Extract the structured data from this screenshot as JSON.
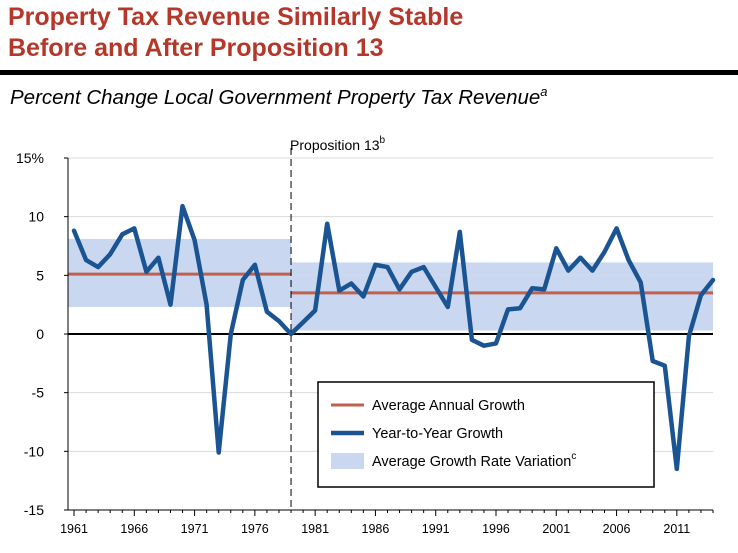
{
  "title_line1": "Property Tax Revenue Similarly Stable",
  "title_line2": "Before and After Proposition 13",
  "subtitle": "Percent Change Local Government Property Tax Revenue",
  "subtitle_sup": "a",
  "colors": {
    "title": "#b5372a",
    "line": "#1a5492",
    "average": "#c0604f",
    "band": "#c9d8f0"
  },
  "chart_data": {
    "type": "line",
    "title": "",
    "xlabel": "",
    "ylabel": "",
    "ylim": [
      -15,
      15
    ],
    "xlim": [
      1960.5,
      2014
    ],
    "y_ticks": [
      15,
      10,
      5,
      0,
      -5,
      -10,
      -15
    ],
    "y_tick_labels": [
      "15%",
      "10",
      "5",
      "0",
      "-5",
      "-10",
      "-15"
    ],
    "x_ticks": [
      1961,
      1966,
      1971,
      1976,
      1981,
      1986,
      1991,
      1996,
      2001,
      2006,
      2011
    ],
    "x_tick_labels": [
      "1961",
      "1966",
      "1971",
      "1976",
      "1981",
      "1986",
      "1991",
      "1996",
      "2001",
      "2006",
      "2011"
    ],
    "grid": "horizontal",
    "annotation": {
      "text": "Proposition 13",
      "sup": "b",
      "x": 1979
    },
    "series": [
      {
        "name": "Year-to-Year Growth",
        "x": [
          1961,
          1962,
          1963,
          1964,
          1965,
          1966,
          1967,
          1968,
          1969,
          1970,
          1971,
          1972,
          1973,
          1974,
          1975,
          1976,
          1977,
          1978,
          1979,
          1980,
          1981,
          1982,
          1983,
          1984,
          1985,
          1986,
          1987,
          1988,
          1989,
          1990,
          1991,
          1992,
          1993,
          1994,
          1995,
          1996,
          1997,
          1998,
          1999,
          2000,
          2001,
          2002,
          2003,
          2004,
          2005,
          2006,
          2007,
          2008,
          2009,
          2010,
          2011,
          2012,
          2013,
          2014
        ],
        "values": [
          8.8,
          6.3,
          5.7,
          6.8,
          8.5,
          9.0,
          5.3,
          6.5,
          2.5,
          10.9,
          8.0,
          2.5,
          -10.1,
          0.0,
          4.6,
          5.9,
          1.9,
          1.1,
          0.0,
          1.0,
          2.0,
          9.4,
          3.7,
          4.3,
          3.2,
          5.9,
          5.7,
          3.8,
          5.3,
          5.7,
          4.0,
          2.3,
          8.7,
          -0.5,
          -1.0,
          -0.8,
          2.1,
          2.2,
          3.9,
          3.8,
          7.3,
          5.4,
          6.5,
          5.4,
          7.0,
          9.0,
          6.3,
          4.4,
          -2.3,
          -2.7,
          -11.5,
          -0.2,
          3.3,
          4.6
        ]
      }
    ],
    "averages": [
      {
        "name": "Average Annual Growth",
        "x_range": [
          1960.5,
          1979
        ],
        "value": 5.1
      },
      {
        "name": "Average Annual Growth",
        "x_range": [
          1979,
          2014
        ],
        "value": 3.5
      }
    ],
    "variation_bands": [
      {
        "name": "Average Growth Rate Variation",
        "x_range": [
          1960.5,
          1979
        ],
        "range": [
          2.3,
          8.1
        ]
      },
      {
        "name": "Average Growth Rate Variation",
        "x_range": [
          1979,
          2014
        ],
        "range": [
          0.3,
          6.1
        ]
      }
    ],
    "legend": {
      "position": "bottom-right",
      "items": [
        {
          "label": "Average Annual Growth",
          "kind": "line-average"
        },
        {
          "label": "Year-to-Year Growth",
          "kind": "line-series"
        },
        {
          "label": "Average Growth Rate Variation",
          "kind": "band",
          "sup": "c"
        }
      ]
    }
  }
}
